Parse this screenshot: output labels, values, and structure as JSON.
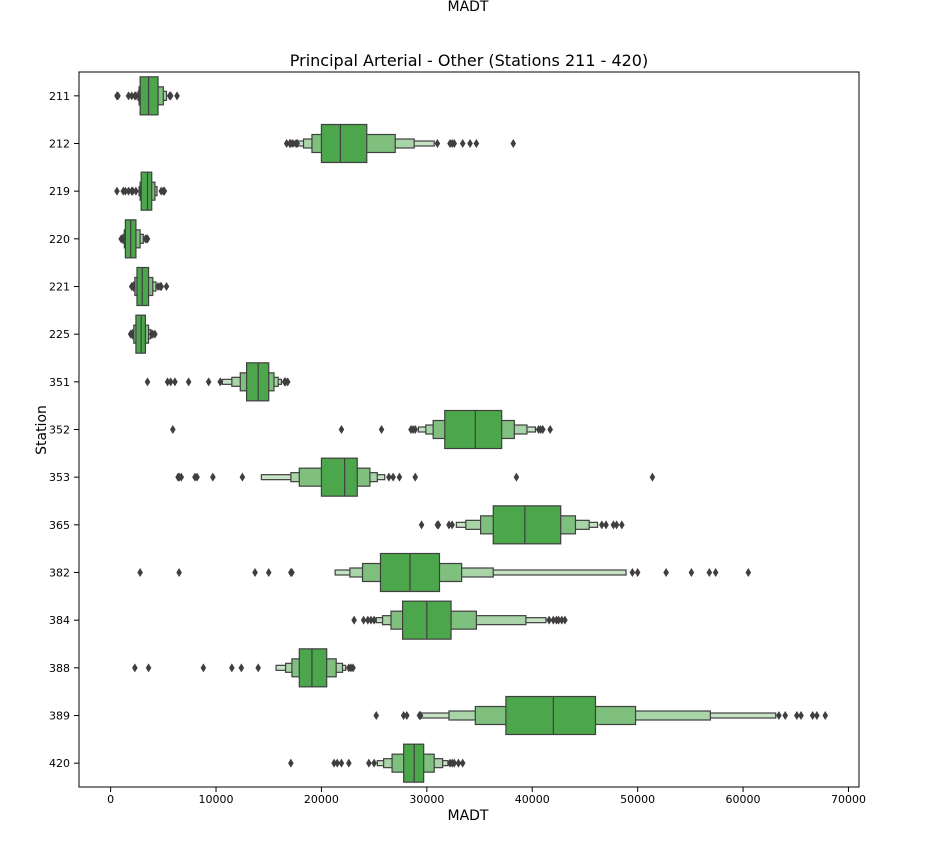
{
  "suptitle": "MADT",
  "chart_data": {
    "type": "boxenplot",
    "title": "Principal Arterial - Other (Stations 211 - 420)",
    "xlabel": "MADT",
    "ylabel": "Station",
    "xlim": [
      -3000,
      71000
    ],
    "xticks": [
      0,
      10000,
      20000,
      30000,
      40000,
      50000,
      60000,
      70000
    ],
    "xtick_labels": [
      "0",
      "10000",
      "20000",
      "30000",
      "40000",
      "50000",
      "60000",
      "70000"
    ],
    "orientation": "horizontal",
    "colors": {
      "level1": "#4ca64c",
      "level2": "#7fc07f",
      "level3": "#a8d4a8",
      "level4": "#c6e3c6",
      "edge": "#3f3f3f",
      "outlier": "#3f3f3f"
    },
    "categories": [
      "211",
      "212",
      "219",
      "220",
      "221",
      "225",
      "351",
      "352",
      "353",
      "365",
      "382",
      "384",
      "388",
      "389",
      "420"
    ],
    "stations": [
      {
        "label": "211",
        "median": 3600,
        "levels": [
          [
            2800,
            4500
          ],
          [
            2700,
            5000
          ],
          [
            2600,
            5300
          ]
        ],
        "outliers": [
          600,
          700,
          1700,
          2000,
          2300,
          2400,
          5600,
          5700,
          6300
        ]
      },
      {
        "label": "212",
        "median": 21800,
        "levels": [
          [
            20000,
            24300
          ],
          [
            19100,
            27000
          ],
          [
            18300,
            28800
          ],
          [
            17500,
            30700
          ]
        ],
        "outliers": [
          16700,
          17000,
          17100,
          17300,
          17600,
          17700,
          31000,
          32200,
          32400,
          32600,
          33400,
          34100,
          34700,
          38200
        ]
      },
      {
        "label": "219",
        "median": 3500,
        "levels": [
          [
            2900,
            3900
          ],
          [
            2800,
            4200
          ],
          [
            2700,
            4400
          ]
        ],
        "outliers": [
          600,
          1200,
          1400,
          1700,
          2000,
          2100,
          2400,
          4800,
          5000,
          5100
        ]
      },
      {
        "label": "220",
        "median": 1900,
        "levels": [
          [
            1400,
            2400
          ],
          [
            1300,
            2800
          ],
          [
            1200,
            3100
          ]
        ],
        "outliers": [
          1000,
          1100,
          3300,
          3400,
          3500
        ]
      },
      {
        "label": "221",
        "median": 3000,
        "levels": [
          [
            2500,
            3600
          ],
          [
            2300,
            4000
          ],
          [
            2200,
            4300
          ]
        ],
        "outliers": [
          2000,
          2100,
          4500,
          4700,
          4800,
          5300
        ]
      },
      {
        "label": "225",
        "median": 2900,
        "levels": [
          [
            2400,
            3300
          ],
          [
            2200,
            3600
          ],
          [
            2100,
            3800
          ]
        ],
        "outliers": [
          1900,
          2000,
          3900,
          4000,
          4200
        ]
      },
      {
        "label": "351",
        "median": 14000,
        "levels": [
          [
            12900,
            15000
          ],
          [
            12300,
            15500
          ],
          [
            11500,
            15900
          ],
          [
            10600,
            16200
          ]
        ],
        "outliers": [
          3500,
          5400,
          5700,
          6100,
          7400,
          9300,
          10400,
          16500,
          16600,
          16800
        ]
      },
      {
        "label": "352",
        "median": 34600,
        "levels": [
          [
            31700,
            37100
          ],
          [
            30600,
            38300
          ],
          [
            29900,
            39500
          ],
          [
            29200,
            40300
          ]
        ],
        "outliers": [
          5900,
          21900,
          25700,
          28500,
          28700,
          28900,
          40600,
          40800,
          41000,
          41700
        ]
      },
      {
        "label": "353",
        "median": 22200,
        "levels": [
          [
            20000,
            23400
          ],
          [
            17900,
            24600
          ],
          [
            17100,
            25300
          ],
          [
            14300,
            26000
          ]
        ],
        "outliers": [
          6400,
          6500,
          6700,
          8000,
          8200,
          9700,
          12500,
          26400,
          26800,
          27400,
          28900,
          38500,
          51400
        ]
      },
      {
        "label": "365",
        "median": 39300,
        "levels": [
          [
            36300,
            42700
          ],
          [
            35100,
            44100
          ],
          [
            33700,
            45400
          ],
          [
            32800,
            46200
          ]
        ],
        "outliers": [
          29500,
          31000,
          31100,
          32100,
          32400,
          46600,
          47000,
          47700,
          48000,
          48500
        ]
      },
      {
        "label": "382",
        "median": 28400,
        "levels": [
          [
            25600,
            31200
          ],
          [
            23900,
            33300
          ],
          [
            22700,
            36300
          ],
          [
            21300,
            48900
          ]
        ],
        "outliers": [
          2800,
          6500,
          13700,
          15000,
          17100,
          17200,
          49500,
          50000,
          52700,
          55100,
          56800,
          57400,
          60500
        ]
      },
      {
        "label": "384",
        "median": 30000,
        "levels": [
          [
            27700,
            32300
          ],
          [
            26600,
            34700
          ],
          [
            25800,
            39400
          ],
          [
            25200,
            41300
          ]
        ],
        "outliers": [
          23100,
          24000,
          24400,
          24700,
          25000,
          41600,
          42000,
          42300,
          42500,
          42800,
          43100
        ]
      },
      {
        "label": "388",
        "median": 19100,
        "levels": [
          [
            17900,
            20500
          ],
          [
            17200,
            21400
          ],
          [
            16600,
            22000
          ],
          [
            15700,
            22300
          ]
        ],
        "outliers": [
          2300,
          3600,
          8800,
          11500,
          12400,
          14000,
          22600,
          22800,
          23000
        ]
      },
      {
        "label": "389",
        "median": 42000,
        "levels": [
          [
            37500,
            46000
          ],
          [
            34600,
            49800
          ],
          [
            32100,
            56900
          ],
          [
            29500,
            63100
          ]
        ],
        "outliers": [
          25200,
          27800,
          28100,
          29300,
          29400,
          63400,
          64000,
          65100,
          65500,
          66600,
          67000,
          67800
        ]
      },
      {
        "label": "420",
        "median": 28800,
        "levels": [
          [
            27800,
            29700
          ],
          [
            26700,
            30700
          ],
          [
            25900,
            31500
          ],
          [
            25300,
            32000
          ]
        ],
        "outliers": [
          17100,
          21200,
          21500,
          21900,
          22600,
          24500,
          25000,
          32200,
          32400,
          32600,
          33000,
          33400
        ]
      }
    ]
  }
}
